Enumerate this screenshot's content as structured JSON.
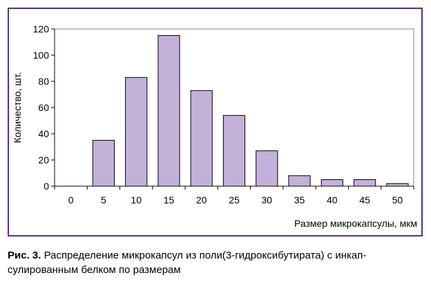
{
  "caption": {
    "label": "Рис. 3.",
    "line1": "Распределение микрокапсул из поли(3-гидроксибутирата) с инкап-",
    "line2": "сулированным белком по размерам"
  },
  "chart_data": {
    "type": "bar",
    "categories": [
      "0",
      "5",
      "10",
      "15",
      "20",
      "25",
      "30",
      "35",
      "40",
      "45",
      "50"
    ],
    "values": [
      0,
      35,
      83,
      115,
      73,
      54,
      27,
      8,
      5,
      5,
      2
    ],
    "xlabel": "Размер микрокапсулы, мкм",
    "ylabel": "Количество, шт.",
    "ylim": [
      0,
      120
    ],
    "yticks": [
      0,
      20,
      40,
      60,
      80,
      100,
      120
    ],
    "grid": false,
    "bar_color": "#c3b1d9",
    "frame_color": "#5b2d83"
  }
}
